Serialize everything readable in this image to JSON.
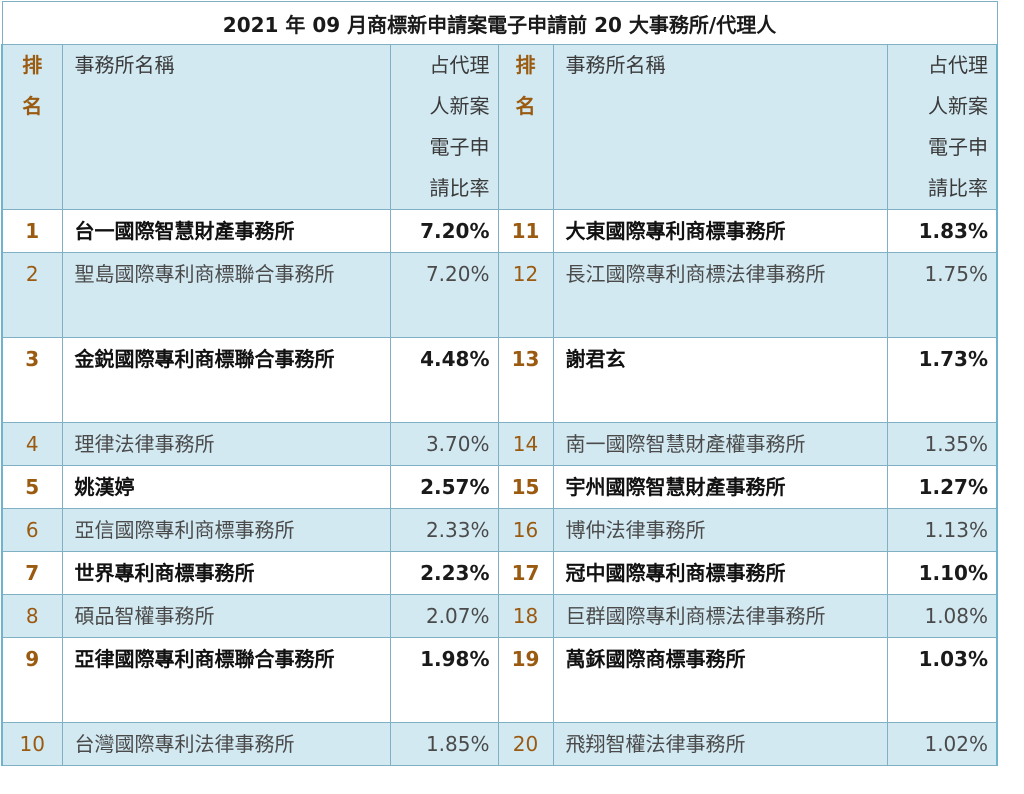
{
  "title": "2021 年 09 月商標新申請案電子申請前 20 大事務所/代理人",
  "headers": {
    "rank_line1": "排",
    "rank_line2": "名",
    "name": "事務所名稱",
    "pct_lines": [
      "占代理",
      "人新案",
      "電子申",
      "請比率"
    ]
  },
  "left": [
    {
      "rank": "1",
      "name": "台一國際智慧財產事務所",
      "pct": "7.20%"
    },
    {
      "rank": "2",
      "name": "聖島國際專利商標聯合事務所",
      "pct": "7.20%"
    },
    {
      "rank": "3",
      "name": "金鋭國際專利商標聯合事務所",
      "pct": "4.48%"
    },
    {
      "rank": "4",
      "name": "理律法律事務所",
      "pct": "3.70%"
    },
    {
      "rank": "5",
      "name": "姚漢婷",
      "pct": "2.57%"
    },
    {
      "rank": "6",
      "name": "亞信國際專利商標事務所",
      "pct": "2.33%"
    },
    {
      "rank": "7",
      "name": "世界專利商標事務所",
      "pct": "2.23%"
    },
    {
      "rank": "8",
      "name": "碩品智權事務所",
      "pct": "2.07%"
    },
    {
      "rank": "9",
      "name": "亞律國際專利商標聯合事務所",
      "pct": "1.98%"
    },
    {
      "rank": "10",
      "name": "台灣國際專利法律事務所",
      "pct": "1.85%"
    }
  ],
  "right": [
    {
      "rank": "11",
      "name": "大東國際專利商標事務所",
      "pct": "1.83%"
    },
    {
      "rank": "12",
      "name": "長江國際專利商標法律事務所",
      "pct": "1.75%"
    },
    {
      "rank": "13",
      "name": "謝君玄",
      "pct": "1.73%"
    },
    {
      "rank": "14",
      "name": "南一國際智慧財產權事務所",
      "pct": "1.35%"
    },
    {
      "rank": "15",
      "name": "宇州國際智慧財產事務所",
      "pct": "1.27%"
    },
    {
      "rank": "16",
      "name": "博仲法律事務所",
      "pct": "1.13%"
    },
    {
      "rank": "17",
      "name": "冠中國際專利商標事務所",
      "pct": "1.10%"
    },
    {
      "rank": "18",
      "name": "巨群國際專利商標法律事務所",
      "pct": "1.08%"
    },
    {
      "rank": "19",
      "name": "萬鉌國際商標事務所",
      "pct": "1.03%"
    },
    {
      "rank": "20",
      "name": "飛翔智權法律事務所",
      "pct": "1.02%"
    }
  ],
  "colors": {
    "rank": "#9a5a10",
    "stripe": "#d2e9f2",
    "border": "#6fb3cf"
  }
}
